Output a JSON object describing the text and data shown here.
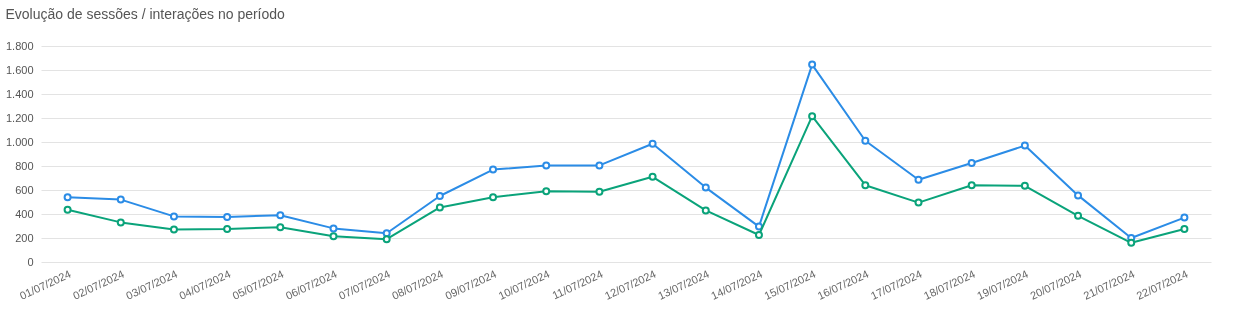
{
  "chart_data": {
    "type": "line",
    "title": "Evolução de sessões / interações no período",
    "categories": [
      "01/07/2024",
      "02/07/2024",
      "03/07/2024",
      "04/07/2024",
      "05/07/2024",
      "06/07/2024",
      "07/07/2024",
      "08/07/2024",
      "09/07/2024",
      "10/07/2024",
      "11/07/2024",
      "12/07/2024",
      "13/07/2024",
      "14/07/2024",
      "15/07/2024",
      "16/07/2024",
      "17/07/2024",
      "18/07/2024",
      "19/07/2024",
      "20/07/2024",
      "21/07/2024",
      "22/07/2024"
    ],
    "series": [
      {
        "color": "#2b8ce6",
        "values": [
          540,
          520,
          380,
          375,
          390,
          280,
          240,
          550,
          770,
          805,
          805,
          985,
          620,
          295,
          1645,
          1010,
          685,
          825,
          970,
          555,
          200,
          370
        ]
      },
      {
        "color": "#0aa37a",
        "values": [
          435,
          330,
          270,
          275,
          290,
          215,
          190,
          455,
          540,
          590,
          585,
          710,
          430,
          225,
          1215,
          640,
          495,
          640,
          635,
          385,
          160,
          275
        ]
      }
    ],
    "ylim": [
      0,
      1800
    ],
    "yticks": [
      0,
      200,
      400,
      600,
      800,
      {
        "value": 1000,
        "label": "1.000"
      },
      {
        "value": 1200,
        "label": "1.200"
      },
      {
        "value": 1400,
        "label": "1.400"
      },
      {
        "value": 1600,
        "label": "1.600"
      },
      {
        "value": 1800,
        "label": "1.800"
      }
    ],
    "grid": "y",
    "marker": "circle",
    "line_style": "solid",
    "legend": false
  }
}
